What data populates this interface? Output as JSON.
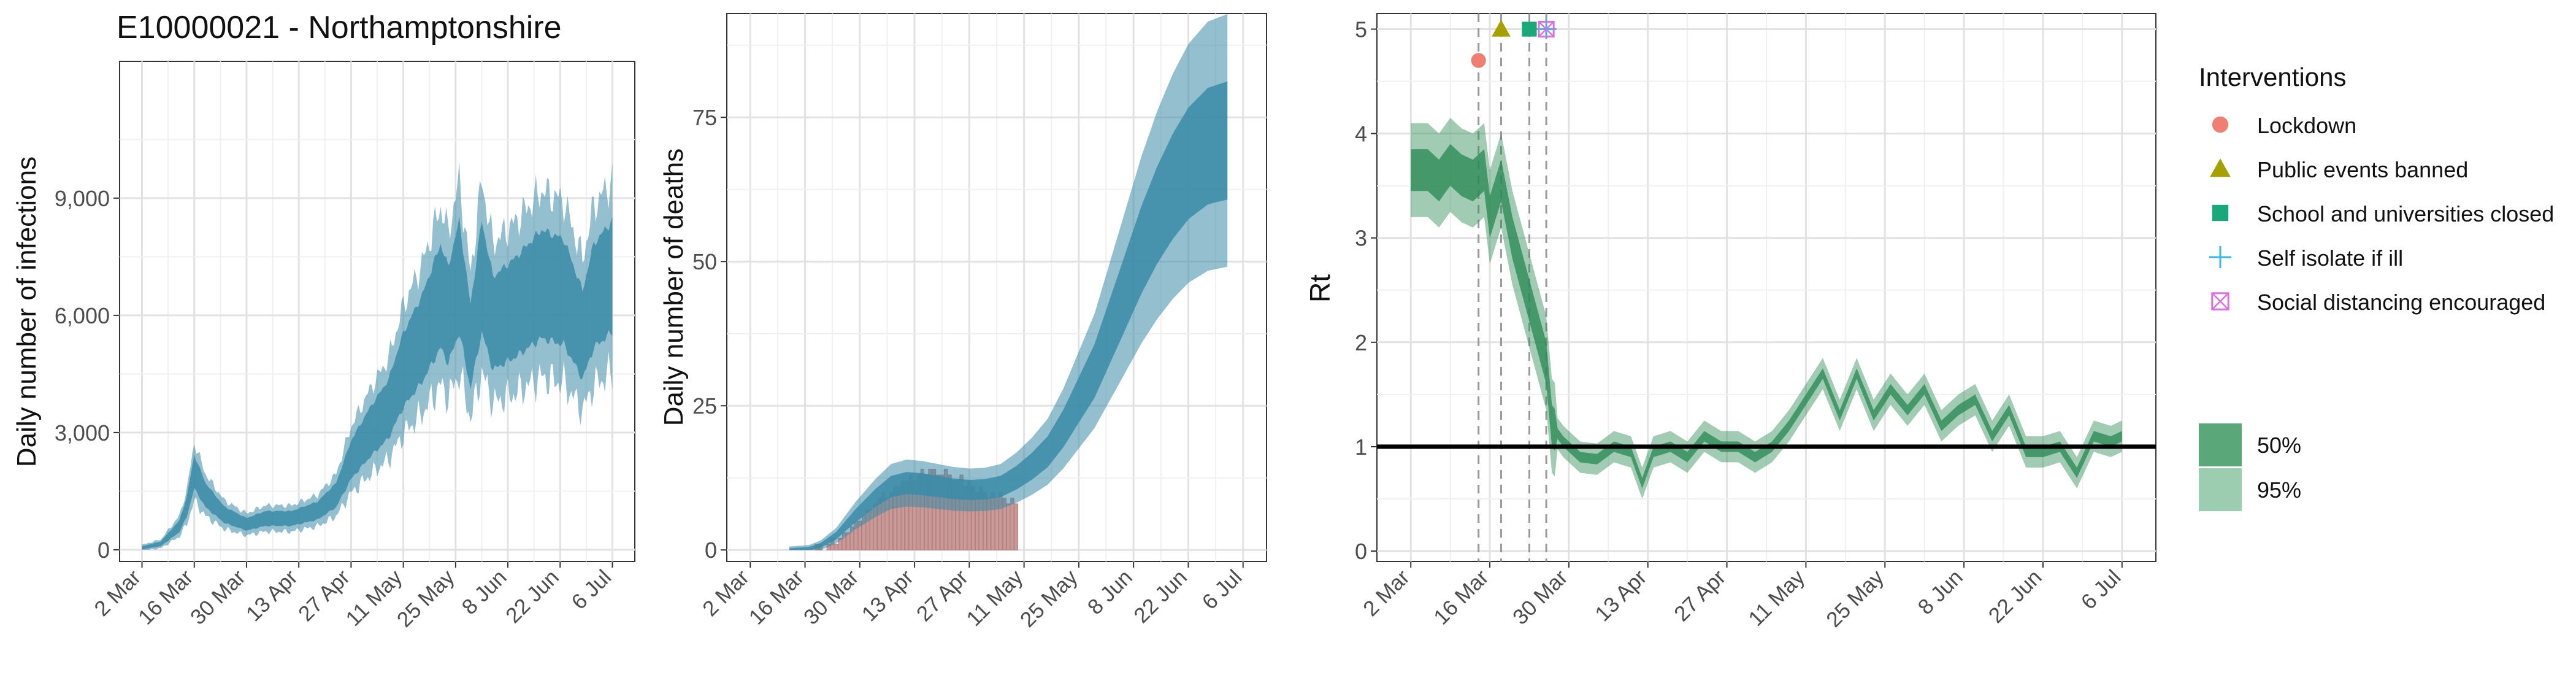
{
  "title": "E10000021 - Northamptonshire",
  "x_ticks": [
    "2 Mar",
    "16 Mar",
    "30 Mar",
    "13 Apr",
    "27 Apr",
    "11 May",
    "25 May",
    "8 Jun",
    "22 Jun",
    "6 Jul"
  ],
  "colors": {
    "infection_band": "#3a8ba8",
    "rt_band": "#2e8b57",
    "deaths_bar": "#c89a98"
  },
  "chart_data": [
    {
      "type": "area",
      "title": "E10000021 - Northamptonshire",
      "ylabel": "Daily number of infections",
      "xlabel": "",
      "x_axis": "day index from 2 Mar (0..128)",
      "ylim": [
        0,
        12000
      ],
      "y_ticks": [
        0,
        3000,
        6000,
        9000
      ],
      "y_tick_labels": [
        "0",
        "3,000",
        "6,000",
        "9,000"
      ],
      "grid": true,
      "series": [
        {
          "points": [
            [
              0,
              50
            ],
            [
              5,
              150
            ],
            [
              10,
              600
            ],
            [
              12,
              1100
            ],
            [
              14,
              2000
            ],
            [
              17,
              1400
            ],
            [
              22,
              900
            ],
            [
              28,
              650
            ],
            [
              33,
              800
            ],
            [
              40,
              800
            ],
            [
              47,
              1000
            ],
            [
              52,
              1400
            ],
            [
              56,
              2300
            ],
            [
              61,
              3000
            ],
            [
              66,
              3600
            ],
            [
              70,
              4600
            ],
            [
              75,
              5400
            ],
            [
              80,
              6500
            ],
            [
              82,
              6000
            ],
            [
              85,
              7000
            ],
            [
              88,
              5200
            ],
            [
              91,
              7000
            ],
            [
              94,
              5800
            ],
            [
              100,
              6200
            ],
            [
              107,
              6800
            ],
            [
              113,
              6600
            ],
            [
              118,
              5500
            ],
            [
              121,
              6500
            ],
            [
              126,
              7000
            ]
          ],
          "ci50": [
            1400,
            0.1
          ],
          "ci95": [
            2400,
            0.25
          ]
        }
      ]
    },
    {
      "type": "bar",
      "ylabel": "Daily number of deaths",
      "xlabel": "",
      "ylim": [
        0,
        93
      ],
      "y_ticks": [
        0,
        25,
        50,
        75
      ],
      "grid": true,
      "deaths": {
        "start_day": 14,
        "values": [
          0,
          0,
          0,
          1,
          1,
          0,
          1,
          2,
          1,
          2,
          3,
          3,
          4,
          5,
          5,
          6,
          7,
          7,
          8,
          9,
          10,
          9,
          10,
          11,
          11,
          12,
          12,
          13,
          12,
          13,
          14,
          13,
          14,
          14,
          13,
          13,
          14,
          13,
          12,
          12,
          13,
          11,
          12,
          11,
          10,
          11,
          10,
          9,
          10,
          9,
          10,
          9,
          8,
          9,
          8
        ]
      },
      "series": [
        {
          "points": [
            [
              10,
              0
            ],
            [
              15,
              0.2
            ],
            [
              18,
              0.8
            ],
            [
              22,
              2.5
            ],
            [
              27,
              6
            ],
            [
              32,
              9
            ],
            [
              36,
              11
            ],
            [
              40,
              11.6
            ],
            [
              44,
              11.4
            ],
            [
              48,
              11
            ],
            [
              52,
              10.6
            ],
            [
              56,
              10.4
            ],
            [
              60,
              10.5
            ],
            [
              64,
              11
            ],
            [
              68,
              12.5
            ],
            [
              72,
              14.5
            ],
            [
              76,
              17
            ],
            [
              80,
              21
            ],
            [
              84,
              26
            ],
            [
              88,
              31
            ],
            [
              92,
              38
            ],
            [
              96,
              45
            ],
            [
              100,
              52
            ],
            [
              104,
              58
            ],
            [
              108,
              63
            ],
            [
              112,
              67
            ],
            [
              117,
              70
            ],
            [
              122,
              71
            ]
          ],
          "ci50_frac": 0.14,
          "ci95_frac": 0.3
        }
      ]
    },
    {
      "type": "line",
      "ylabel": "Rt",
      "xlabel": "",
      "ylim": [
        0,
        5
      ],
      "y_ticks": [
        0,
        1,
        2,
        3,
        4,
        5
      ],
      "reference_line": 1,
      "grid": true,
      "interventions_day": [
        12,
        16,
        21,
        24,
        24
      ],
      "series": [
        {
          "points": [
            [
              0,
              3.65
            ],
            [
              3,
              3.65
            ],
            [
              5,
              3.55
            ],
            [
              7,
              3.7
            ],
            [
              9,
              3.6
            ],
            [
              11,
              3.55
            ],
            [
              13,
              3.65
            ],
            [
              14,
              3.2
            ],
            [
              16,
              3.55
            ],
            [
              18,
              3.0
            ],
            [
              20,
              2.6
            ],
            [
              22,
              2.2
            ],
            [
              24,
              1.8
            ],
            [
              25,
              1.2
            ],
            [
              27,
              1.05
            ],
            [
              30,
              0.9
            ],
            [
              33,
              0.88
            ],
            [
              36,
              1.0
            ],
            [
              39,
              0.95
            ],
            [
              41,
              0.65
            ],
            [
              43,
              0.95
            ],
            [
              46,
              1.0
            ],
            [
              49,
              0.9
            ],
            [
              52,
              1.1
            ],
            [
              55,
              1.0
            ],
            [
              58,
              1.0
            ],
            [
              61,
              0.9
            ],
            [
              64,
              1.0
            ],
            [
              67,
              1.2
            ],
            [
              70,
              1.45
            ],
            [
              73,
              1.7
            ],
            [
              76,
              1.3
            ],
            [
              79,
              1.7
            ],
            [
              82,
              1.3
            ],
            [
              85,
              1.55
            ],
            [
              88,
              1.35
            ],
            [
              91,
              1.55
            ],
            [
              94,
              1.2
            ],
            [
              97,
              1.35
            ],
            [
              100,
              1.45
            ],
            [
              103,
              1.1
            ],
            [
              106,
              1.35
            ],
            [
              109,
              0.95
            ],
            [
              112,
              0.95
            ],
            [
              115,
              1.0
            ],
            [
              118,
              0.75
            ],
            [
              121,
              1.1
            ],
            [
              124,
              1.05
            ],
            [
              126,
              1.1
            ]
          ],
          "ci50": 0.05,
          "ci95": 0.15
        }
      ]
    }
  ],
  "legend": {
    "title": "Interventions",
    "items": [
      {
        "label": "Lockdown",
        "color": "#f07f73",
        "marker": "circle"
      },
      {
        "label": "Public events banned",
        "color": "#a6a000",
        "marker": "triangle"
      },
      {
        "label": "School and universities closed",
        "color": "#1aa87a",
        "marker": "square"
      },
      {
        "label": "Self isolate if ill",
        "color": "#3ab8e8",
        "marker": "plus"
      },
      {
        "label": "Social distancing encouraged",
        "color": "#d970e0",
        "marker": "square-x"
      }
    ],
    "ci_items": [
      {
        "label": "50%",
        "color": "#5aa87a"
      },
      {
        "label": "95%",
        "color": "#9ccdb0"
      }
    ]
  }
}
